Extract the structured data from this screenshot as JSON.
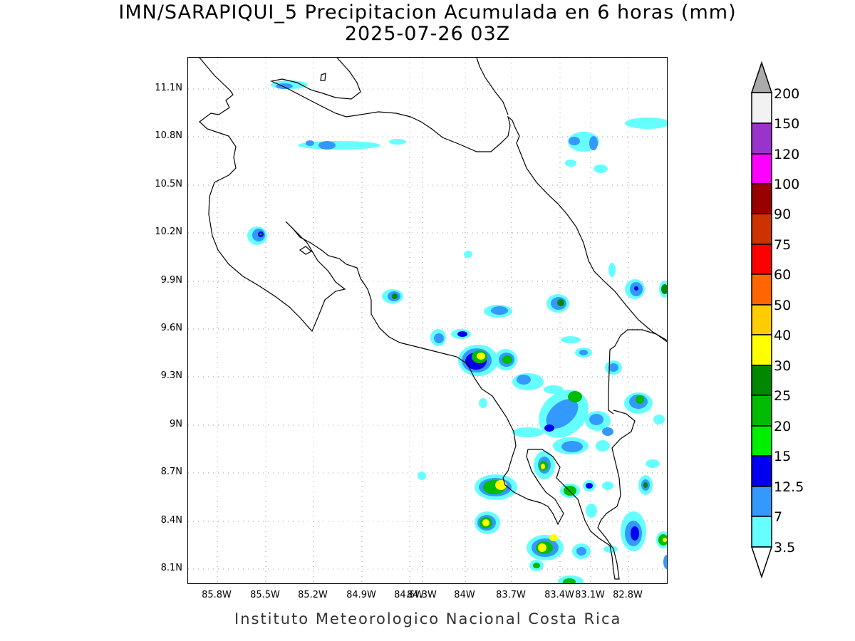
{
  "title_line1": "IMN/SARAPIQUI_5 Precipitacion Acumulada en 6 horas (mm)",
  "title_line2": "2025-07-26 03Z",
  "footer": "Instituto Meteorologico Nacional Costa Rica",
  "axes": {
    "lon_labels": [
      "85.8W",
      "85.5W",
      "85.2W",
      "84.9W",
      "84.6W",
      "84.3W",
      "84W",
      "83.7W",
      "83.4W",
      "83.1W",
      "82.8W"
    ],
    "lat_labels": [
      "11.1N",
      "10.8N",
      "10.5N",
      "10.2N",
      "9.9N",
      "9.6N",
      "9.3N",
      "9N",
      "8.7N",
      "8.4N",
      "8.1N"
    ],
    "grid": "dotted"
  },
  "legend": {
    "levels": [
      "3.5",
      "7",
      "12.5",
      "15",
      "20",
      "25",
      "30",
      "40",
      "50",
      "60",
      "75",
      "90",
      "100",
      "120",
      "150",
      "200"
    ],
    "colors": [
      "#66ffff",
      "#3399ff",
      "#0000ee",
      "#00ee00",
      "#00bb00",
      "#008800",
      "#ffff00",
      "#ffcc00",
      "#ff6600",
      "#ff0000",
      "#cc3300",
      "#990000",
      "#ff00ff",
      "#9933cc",
      "#f2f2f2",
      "#aaaaaa"
    ],
    "below_color": "#ffffff"
  }
}
